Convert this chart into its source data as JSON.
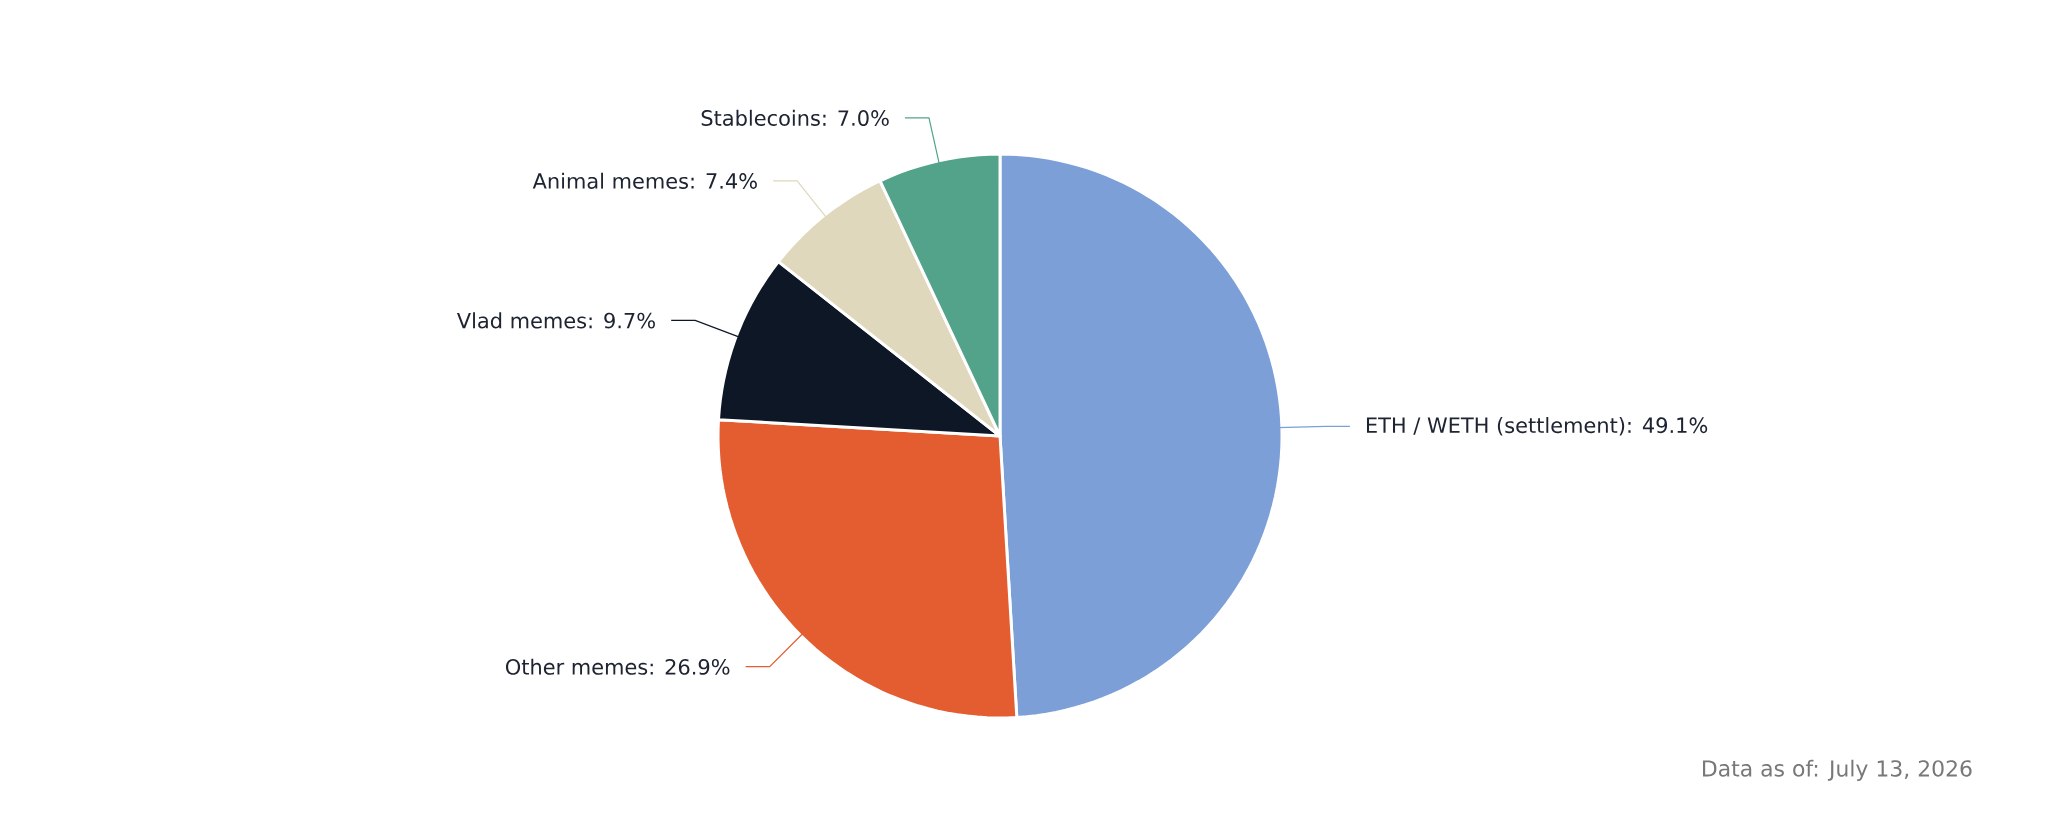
{
  "chart_data": {
    "type": "pie",
    "categories": [
      "ETH / WETH (settlement): 49.1%",
      "Other memes: 26.9%",
      "Vlad memes: 9.7%",
      "Animal memes: 7.4%",
      "Stablecoins: 7.0%"
    ],
    "values": [
      49.1,
      26.9,
      9.7,
      7.4,
      7.0
    ],
    "colors": [
      "#7b9fd6",
      "#e35d30",
      "#0d1726",
      "#dfd8bc",
      "#52a38a"
    ],
    "annotations": [
      "Data as of: July 13, 2026"
    ]
  }
}
